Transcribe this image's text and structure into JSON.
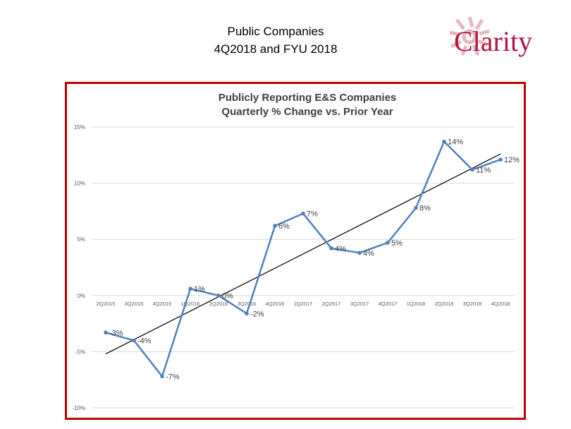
{
  "slide": {
    "title_line1": "Public Companies",
    "title_line2": "4Q2018 and FYU 2018"
  },
  "logo": {
    "text": "Clarity",
    "color": "#b0163f"
  },
  "chart_data": {
    "type": "line",
    "title": "Publicly Reporting E&S Companies",
    "subtitle": "Quarterly % Change vs. Prior Year",
    "categories": [
      "2Q2015",
      "3Q2015",
      "4Q2015",
      "1Q2016",
      "2Q2016",
      "3Q2016",
      "4Q2016",
      "1Q2017",
      "2Q2917",
      "3Q2017",
      "4Q2017",
      "1Q2018",
      "2Q2018",
      "3Q2018",
      "4Q2018"
    ],
    "series": [
      {
        "values": [
          -3.3,
          -4.0,
          -7.2,
          0.6,
          0.0,
          -1.6,
          6.2,
          7.3,
          4.2,
          3.8,
          4.7,
          7.8,
          13.7,
          11.2,
          12.1
        ],
        "labels": [
          "-3%",
          "-4%",
          "-7%",
          "1%",
          "0%",
          "-2%",
          "6%",
          "7%",
          "4%",
          "4%",
          "5%",
          "8%",
          "14%",
          "11%",
          "12%"
        ],
        "color": "#4f81bd"
      }
    ],
    "trendline": {
      "start": -5.2,
      "end": 12.6,
      "color": "#000000"
    },
    "ylim": [
      -10,
      15
    ],
    "yticks": [
      15,
      10,
      5,
      0,
      -5,
      -10
    ],
    "ytick_labels": [
      "15%",
      "10%",
      "5%",
      "0%",
      "-5%",
      "-10%"
    ],
    "grid": true,
    "legend": "none",
    "frame_color": "#c00000"
  }
}
